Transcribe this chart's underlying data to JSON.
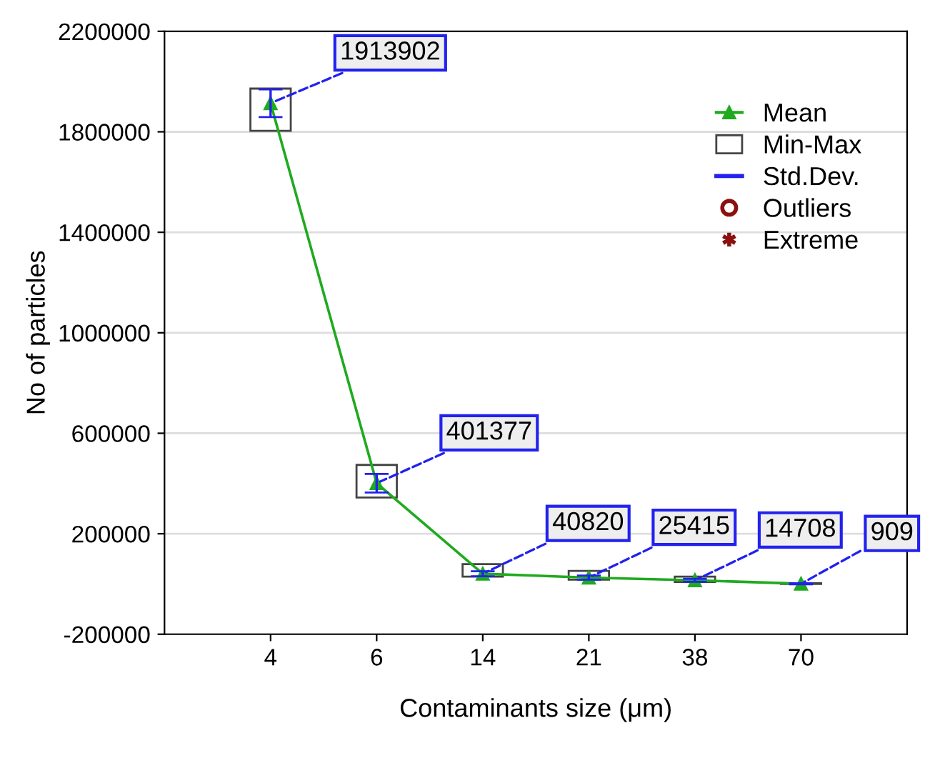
{
  "chart_data": {
    "type": "line",
    "xlabel": "Contaminants size (μm)",
    "ylabel": "No of particles",
    "categories": [
      "4",
      "6",
      "14",
      "21",
      "38",
      "70"
    ],
    "series": [
      {
        "name": "Mean",
        "color": "#1faa1f",
        "marker": "triangle",
        "values": [
          1913902,
          401377,
          40820,
          25415,
          14708,
          909
        ],
        "errors": [
          55000,
          37000,
          10000,
          8000,
          6000,
          2000
        ],
        "value_labels": [
          "1913902",
          "401377",
          "40820",
          "25415",
          "14708",
          "909"
        ]
      },
      {
        "name": "Min-Max",
        "type": "bar",
        "color": "#444444",
        "base": [
          1804000,
          344000,
          29000,
          17000,
          8000,
          0
        ],
        "values": [
          168000,
          130000,
          50000,
          35000,
          21000,
          3000
        ]
      },
      {
        "name": "Std.Dev.",
        "type": "scatter",
        "marker": "none",
        "color": "#2222ee",
        "values": [
          null,
          null,
          null,
          null,
          null,
          null
        ]
      },
      {
        "name": "Outliers",
        "type": "scatter",
        "color": "#8b1010",
        "marker": "circle",
        "values": [
          null,
          null,
          null,
          null,
          null,
          null
        ]
      },
      {
        "name": "Extreme",
        "type": "scatter",
        "color": "#8b1010",
        "marker": "star",
        "values": [
          null,
          null,
          null,
          null,
          null,
          null
        ]
      }
    ],
    "ylim": [
      -200000,
      2200000
    ],
    "yticks": [
      -200000,
      200000,
      600000,
      1000000,
      1400000,
      1800000,
      2200000
    ],
    "grid": "y",
    "legend": "top right"
  }
}
